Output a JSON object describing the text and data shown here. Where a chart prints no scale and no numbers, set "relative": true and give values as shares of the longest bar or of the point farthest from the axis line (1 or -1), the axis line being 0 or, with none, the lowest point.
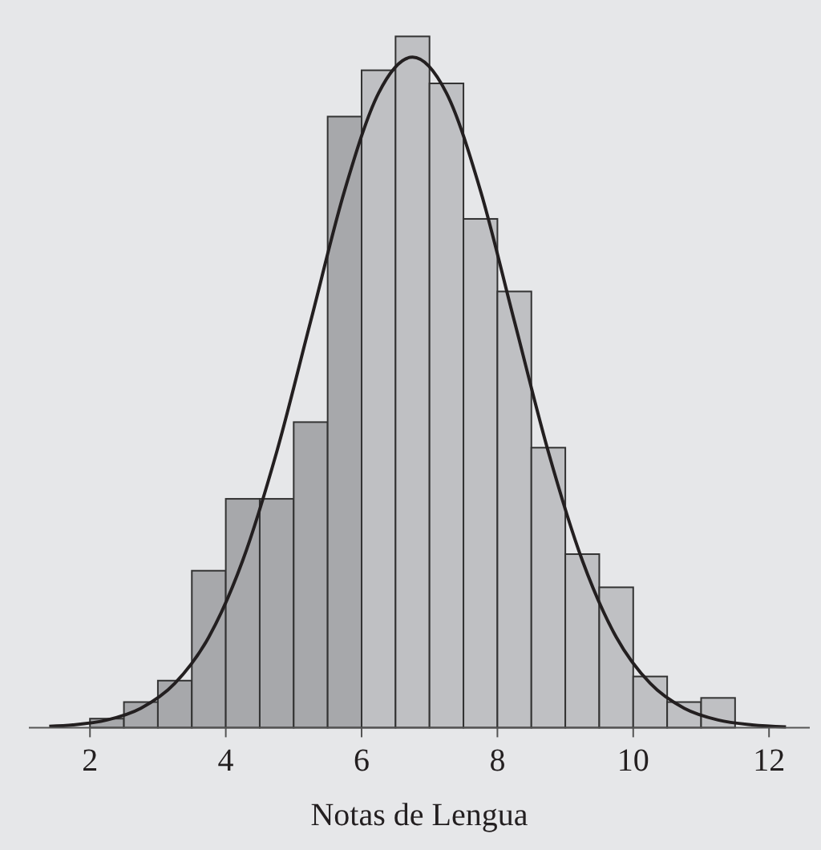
{
  "chart_data": {
    "type": "histogram",
    "xlabel": "Notas de Lengua",
    "relative": true,
    "xlim": [
      1.1,
      12.6
    ],
    "xticks": [
      2,
      4,
      6,
      8,
      10,
      12
    ],
    "grid": false,
    "bins": [
      2,
      2.5,
      3,
      3.5,
      4,
      4.5,
      5,
      5.5,
      6,
      6.5,
      7,
      7.5,
      8,
      8.5,
      9,
      9.5,
      10,
      10.5,
      11,
      11.5
    ],
    "series": [
      {
        "values": [
          0.013,
          0.037,
          0.068,
          0.227,
          0.331,
          0.331,
          0.442,
          0.884,
          0.951,
          1,
          0.932,
          0.736,
          0.631,
          0.405,
          0.251,
          0.203,
          0.074,
          0.037,
          0.043
        ],
        "colors": [
          "#a7a8ab",
          "#a7a8ab",
          "#a7a8ab",
          "#a7a8ab",
          "#a7a8ab",
          "#a7a8ab",
          "#a7a8ab",
          "#a7a8ab",
          "#bfc0c3",
          "#bfc0c3",
          "#bfc0c3",
          "#bfc0c3",
          "#bfc0c3",
          "#bfc0c3",
          "#bfc0c3",
          "#bfc0c3",
          "#bfc0c3",
          "#bfc0c3",
          "#bfc0c3"
        ]
      },
      {
        "type": "line",
        "color": "#231f20",
        "x": [
          1.4,
          1.75,
          2.25,
          2.75,
          3.25,
          3.75,
          4.25,
          4.75,
          5.25,
          5.75,
          6.25,
          6.75,
          7.25,
          7.75,
          8.25,
          8.75,
          9.25,
          9.75,
          10.25,
          10.75,
          11.25,
          11.75,
          12.25
        ],
        "values": [
          0.002,
          0.004,
          0.011,
          0.028,
          0.064,
          0.131,
          0.242,
          0.399,
          0.588,
          0.777,
          0.918,
          0.97,
          0.918,
          0.777,
          0.588,
          0.399,
          0.242,
          0.131,
          0.064,
          0.028,
          0.011,
          0.004,
          0.001
        ]
      }
    ]
  }
}
